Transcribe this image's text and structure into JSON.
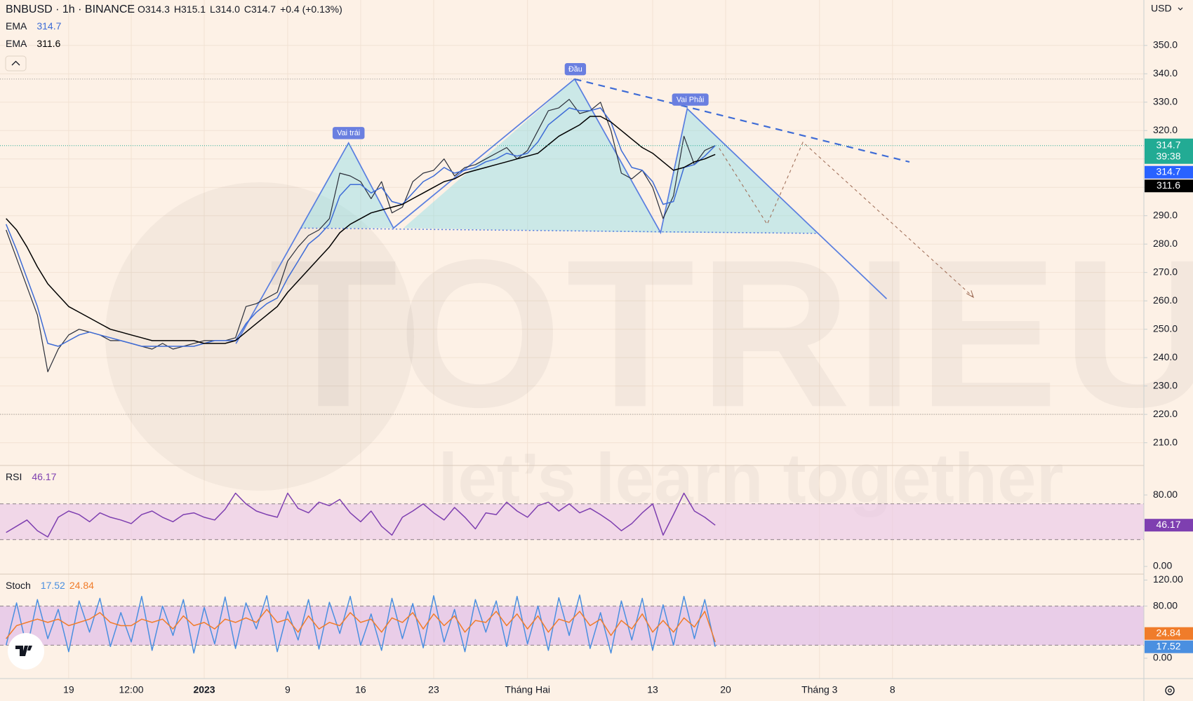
{
  "header": {
    "symbol": "BNBUSD · 1h · BINANCE",
    "ohlc": [
      {
        "label": "O",
        "value": "314.3"
      },
      {
        "label": "H",
        "value": "315.1"
      },
      {
        "label": "L",
        "value": "314.0"
      },
      {
        "label": "C",
        "value": "314.7"
      }
    ],
    "change": "+0.4 (+0.13%)",
    "currency": "USD",
    "countdown": "39:38"
  },
  "annotations": [
    "Vai trái",
    "Đầu",
    "Vai Phải"
  ],
  "watermark": {
    "brand": "TOTRIEU",
    "slogan": "let’s learn together"
  },
  "chart_data": [
    {
      "type": "line",
      "categories": [
        null,
        null,
        null,
        null,
        null,
        null,
        "19",
        null,
        null,
        null,
        null,
        null,
        "12:00",
        null,
        null,
        null,
        null,
        null,
        null,
        "2023",
        null,
        null,
        null,
        null,
        null,
        null,
        null,
        "9",
        null,
        null,
        null,
        null,
        null,
        null,
        "16",
        null,
        null,
        null,
        null,
        null,
        null,
        "23",
        null,
        null,
        null,
        null,
        null,
        null,
        null,
        null,
        "Tháng Hai",
        null,
        null,
        null,
        null,
        null,
        null,
        null,
        null,
        null,
        null,
        null,
        "13",
        null,
        null,
        null,
        null,
        null,
        null,
        "20",
        null,
        null,
        null,
        null,
        null,
        null,
        null,
        null,
        "Tháng 3",
        null,
        null,
        null,
        null,
        null,
        null,
        "8"
      ],
      "series": [
        {
          "color": "#2a2e39",
          "values": [
            285,
            275,
            265,
            255,
            235,
            243,
            248,
            250,
            249,
            248,
            246,
            246,
            245,
            244,
            243,
            245,
            243,
            244,
            245,
            246,
            246,
            246,
            247,
            258,
            259,
            261,
            263,
            274,
            279,
            283,
            285,
            289,
            305,
            304,
            302,
            296,
            302,
            291,
            293,
            302,
            305,
            306,
            310,
            304,
            307,
            308,
            310,
            312,
            314,
            310,
            313,
            320,
            327,
            328,
            331,
            326,
            327,
            330,
            320,
            305,
            303,
            306,
            300,
            289,
            297,
            318,
            308,
            313,
            314.7,
            null,
            null,
            null,
            null,
            null,
            null,
            null,
            null,
            null,
            null,
            null,
            null,
            null,
            null,
            null,
            null,
            null
          ]
        },
        {
          "name": "EMA",
          "color": "#3d6bd6",
          "values": [
            287,
            278,
            268,
            258,
            245,
            244,
            246,
            248,
            249,
            248,
            247,
            246,
            245,
            244,
            244,
            244,
            244,
            244,
            244,
            245,
            246,
            246,
            246,
            252,
            256,
            259,
            261,
            268,
            274,
            280,
            283,
            287,
            297,
            301,
            301,
            298,
            300,
            295,
            294,
            298,
            302,
            304,
            307,
            305,
            306,
            307,
            309,
            310,
            312,
            311,
            312,
            316,
            322,
            325,
            328,
            327,
            327,
            328,
            323,
            313,
            307,
            306,
            302,
            294,
            295,
            307,
            308,
            311,
            314.7,
            null,
            null,
            null,
            null,
            null,
            null,
            null,
            null,
            null,
            null,
            null,
            null,
            null,
            null,
            null,
            null,
            null
          ]
        },
        {
          "name": "EMA",
          "color": "#000000",
          "values": [
            289,
            285,
            279,
            272,
            266,
            262,
            258,
            256,
            254,
            252,
            250,
            249,
            248,
            247,
            246,
            246,
            246,
            246,
            246,
            245,
            245,
            245,
            246,
            249,
            252,
            255,
            258,
            263,
            267,
            271,
            275,
            279,
            284,
            287,
            289,
            291,
            292,
            293,
            294,
            296,
            298,
            300,
            302,
            303,
            305,
            306,
            307,
            308,
            309,
            310,
            311,
            312,
            315,
            318,
            320,
            322,
            325,
            325,
            323,
            320,
            317,
            314,
            312,
            309,
            306,
            307,
            309,
            310,
            311.6,
            null,
            null,
            null,
            null,
            null,
            null,
            null,
            null,
            null,
            null,
            null,
            null,
            null,
            null,
            null,
            null,
            null
          ]
        }
      ],
      "ylim": [
        202,
        366
      ],
      "yticks": [
        {
          "value": 210,
          "label": "210.0"
        },
        {
          "value": 220,
          "label": "220.0"
        },
        {
          "value": 230,
          "label": "230.0"
        },
        {
          "value": 240,
          "label": "240.0"
        },
        {
          "value": 250,
          "label": "250.0"
        },
        {
          "value": 260,
          "label": "260.0"
        },
        {
          "value": 270,
          "label": "270.0"
        },
        {
          "value": 280,
          "label": "280.0"
        },
        {
          "value": 290,
          "label": "290.0"
        },
        {
          "value": 300,
          "label": "300.0"
        },
        {
          "value": 310,
          "label": "310.0"
        },
        {
          "value": 320,
          "label": "320.0"
        },
        {
          "value": 330,
          "label": "330.0"
        },
        {
          "value": 340,
          "label": "340.0"
        },
        {
          "value": 350,
          "label": "350.0"
        }
      ],
      "grid": true,
      "last_price_color": "#22ab94"
    },
    {
      "type": "line",
      "title": "RSI",
      "series": [
        {
          "color": "#7e3fb0",
          "values": [
            38,
            45,
            52,
            40,
            33,
            55,
            62,
            58,
            50,
            60,
            55,
            52,
            48,
            58,
            62,
            55,
            50,
            58,
            60,
            55,
            52,
            64,
            82,
            70,
            62,
            58,
            55,
            82,
            65,
            60,
            72,
            68,
            75,
            60,
            50,
            62,
            45,
            35,
            55,
            62,
            70,
            60,
            52,
            66,
            55,
            42,
            60,
            58,
            72,
            62,
            55,
            68,
            72,
            62,
            70,
            60,
            65,
            58,
            50,
            40,
            48,
            60,
            70,
            35,
            58,
            82,
            62,
            55,
            46.17
          ]
        }
      ],
      "ylim": [
        -8.6,
        113
      ],
      "yticks": [
        {
          "value": 0,
          "label": "0.00"
        },
        {
          "value": 80,
          "label": "80.00"
        }
      ],
      "bands": [
        30,
        70
      ],
      "band_color": "#e9c6ea"
    },
    {
      "type": "line",
      "title": "Stoch",
      "series": [
        {
          "color": "#4a8fe0",
          "values": [
            20,
            85,
            15,
            90,
            30,
            75,
            10,
            88,
            40,
            92,
            18,
            70,
            25,
            95,
            12,
            80,
            35,
            90,
            8,
            78,
            22,
            94,
            15,
            85,
            45,
            96,
            10,
            72,
            28,
            90,
            14,
            86,
            38,
            95,
            20,
            68,
            12,
            92,
            30,
            84,
            16,
            96,
            25,
            75,
            10,
            90,
            40,
            88,
            18,
            95,
            22,
            80,
            12,
            93,
            35,
            97,
            15,
            70,
            8,
            88,
            28,
            92,
            12,
            82,
            20,
            95,
            30,
            90,
            17.52
          ]
        },
        {
          "color": "#f07c2a",
          "values": [
            30,
            50,
            55,
            60,
            55,
            60,
            50,
            55,
            60,
            70,
            55,
            50,
            50,
            60,
            55,
            60,
            45,
            65,
            50,
            55,
            45,
            60,
            55,
            62,
            55,
            75,
            55,
            60,
            40,
            65,
            45,
            55,
            50,
            70,
            55,
            60,
            40,
            62,
            55,
            70,
            45,
            68,
            50,
            65,
            40,
            58,
            55,
            72,
            50,
            68,
            45,
            65,
            40,
            60,
            55,
            72,
            50,
            60,
            35,
            58,
            45,
            68,
            40,
            58,
            40,
            62,
            48,
            72,
            24.84
          ]
        }
      ],
      "ylim": [
        -31.2,
        129.1
      ],
      "yticks": [
        {
          "value": 0,
          "label": "0.00"
        },
        {
          "value": 80,
          "label": "80.00"
        },
        {
          "value": 120,
          "label": "120.00"
        }
      ],
      "bands": [
        20,
        80
      ],
      "band_color": "#dcb6ea"
    }
  ]
}
